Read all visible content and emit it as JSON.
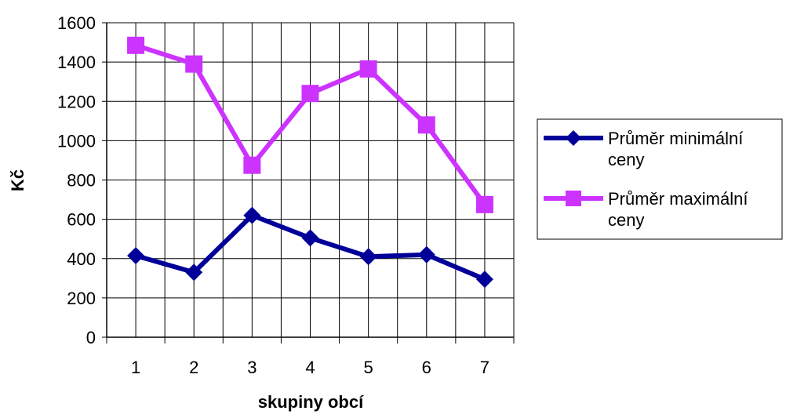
{
  "chart_data": {
    "type": "line",
    "title": "",
    "xlabel": "skupiny obcí",
    "ylabel": "Kč",
    "categories": [
      "1",
      "2",
      "3",
      "4",
      "5",
      "6",
      "7"
    ],
    "ylim": [
      0,
      1600
    ],
    "yticks": [
      "0",
      "200",
      "400",
      "600",
      "800",
      "1000",
      "1200",
      "1400",
      "1600"
    ],
    "grid": true,
    "legend_position": "right",
    "series": [
      {
        "name": "Průměr minimální ceny",
        "legend_lines": [
          "Průměr minimální",
          "ceny"
        ],
        "color": "#000099",
        "marker": "diamond",
        "values": [
          415,
          330,
          620,
          505,
          410,
          420,
          295
        ]
      },
      {
        "name": "Průměr maximální ceny",
        "legend_lines": [
          "Průměr maximální",
          "ceny"
        ],
        "color": "#cc33ff",
        "marker": "square",
        "values": [
          1485,
          1390,
          875,
          1240,
          1365,
          1080,
          675
        ]
      }
    ]
  }
}
